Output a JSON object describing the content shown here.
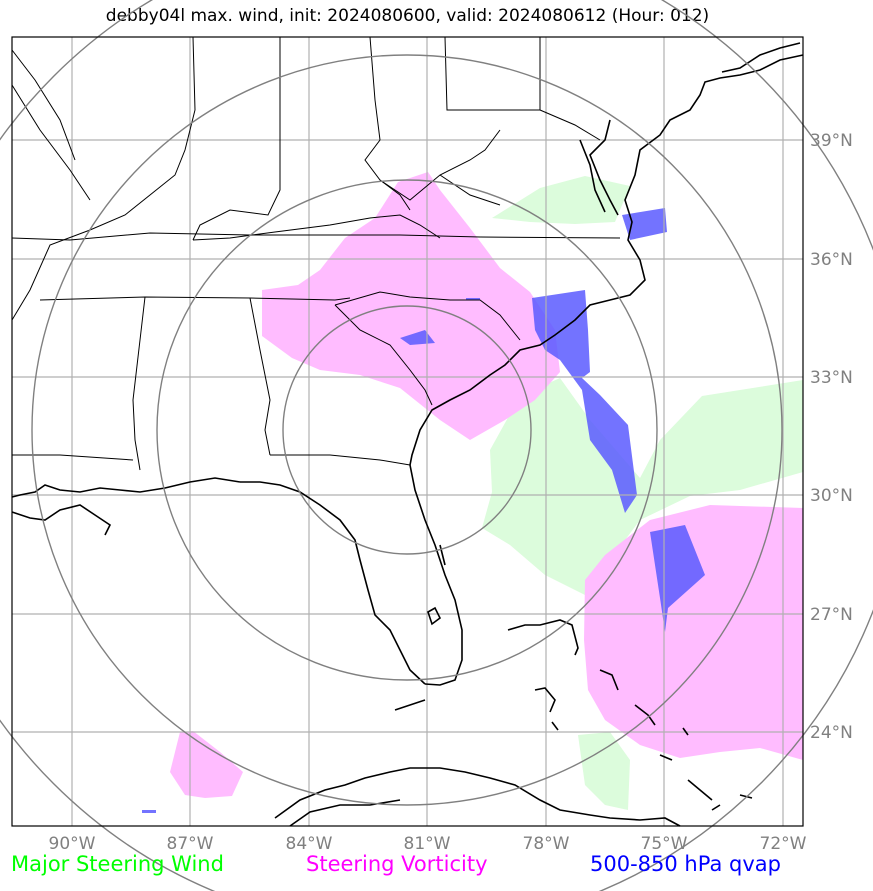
{
  "title": "debby04l max. wind, init: 2024080600, valid: 2024080612 (Hour: 012)",
  "map": {
    "projection": "lat-lon",
    "lon_range": [
      -91.5,
      -71.5
    ],
    "lat_range": [
      21.5,
      41.5
    ],
    "lon_labels": [
      "90°W",
      "87°W",
      "84°W",
      "81°W",
      "78°W",
      "75°W",
      "72°W"
    ],
    "lat_labels": [
      "39°N",
      "36°N",
      "33°N",
      "30°N",
      "27°N",
      "24°N"
    ],
    "range_rings_center": {
      "lon": -81.0,
      "lat": 32.2
    }
  },
  "legend": [
    {
      "label": "Major Steering Wind",
      "color": "#00ff00"
    },
    {
      "label": "Steering Vorticity",
      "color": "#ff00ff"
    },
    {
      "label": "500-850 hPa qvap",
      "color": "#0000ff"
    }
  ],
  "colors": {
    "grid": "#b0b0b0",
    "rings": "#808080",
    "steering_wind_fill": "#dcfcdc",
    "vorticity_fill": "#ffbcff",
    "qvap_fill": "#5a5aff",
    "coast": "#000000"
  }
}
